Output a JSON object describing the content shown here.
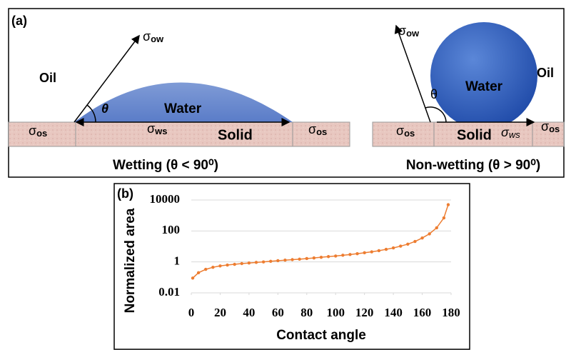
{
  "panel_a": {
    "label": "(a)",
    "wetting": {
      "medium": "Oil",
      "drop": "Water",
      "substrate": "Solid",
      "angle": "θ",
      "sigma": "σ",
      "sub_ow": "ow",
      "sub_os": "os",
      "sub_ws": "ws",
      "caption": "Wetting (θ < 90⁰)"
    },
    "nonwetting": {
      "medium": "Oil",
      "drop": "Water",
      "substrate": "Solid",
      "angle": "θ",
      "sigma": "σ",
      "sub_ow": "ow",
      "sub_os": "os",
      "sub_ws": "ws",
      "caption": "Non-wetting (θ > 90⁰)"
    }
  },
  "chart_data": {
    "type": "line",
    "panel_label": "(b)",
    "x_label": "Contact angle",
    "y_label": "Normalized area",
    "x": [
      1,
      5,
      10,
      15,
      20,
      25,
      30,
      35,
      40,
      45,
      50,
      55,
      60,
      65,
      70,
      75,
      80,
      85,
      90,
      95,
      100,
      105,
      110,
      115,
      120,
      125,
      130,
      135,
      140,
      145,
      150,
      155,
      160,
      165,
      170,
      175,
      178
    ],
    "values": [
      0.09,
      0.2,
      0.33,
      0.45,
      0.55,
      0.63,
      0.7,
      0.78,
      0.85,
      0.93,
      1.0,
      1.1,
      1.2,
      1.3,
      1.4,
      1.5,
      1.65,
      1.8,
      2.0,
      2.2,
      2.4,
      2.7,
      3.0,
      3.4,
      3.9,
      4.5,
      5.3,
      6.5,
      8,
      10.5,
      14,
      21,
      35,
      65,
      160,
      700,
      5000
    ],
    "color": "#ed7d31",
    "xlim": [
      0,
      180
    ],
    "xticks": [
      0,
      20,
      40,
      60,
      80,
      100,
      120,
      140,
      160,
      180
    ],
    "ylim": [
      0.01,
      10000
    ],
    "yticks": [
      0.01,
      1,
      100,
      10000
    ],
    "ylog": true,
    "grid": true
  }
}
